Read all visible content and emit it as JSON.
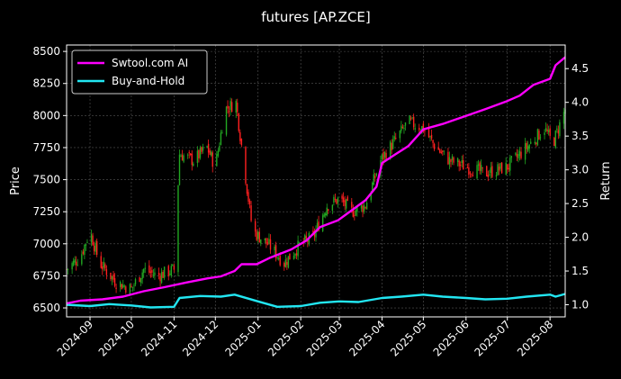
{
  "chart_data": {
    "type": "line",
    "title": "futures [AP.ZCE]",
    "ylabel_left": "Price",
    "ylabel_right": "Return",
    "x_ticks": [
      "2024-09",
      "2024-10",
      "2024-11",
      "2024-12",
      "2025-01",
      "2025-02",
      "2025-03",
      "2025-04",
      "2025-05",
      "2025-06",
      "2025-07",
      "2025-08"
    ],
    "x_range": [
      "2024-08-15",
      "2025-08-12"
    ],
    "y_left_range": [
      6430,
      8550
    ],
    "y_left_ticks": [
      "6500",
      "6750",
      "7000",
      "7250",
      "7500",
      "7750",
      "8000",
      "8250",
      "8500"
    ],
    "y_right_range": [
      0.82,
      4.85
    ],
    "y_right_ticks": [
      "1.0",
      "1.5",
      "2.0",
      "2.5",
      "3.0",
      "3.5",
      "4.0",
      "4.5"
    ],
    "grid": true,
    "legend_position": "top-left",
    "colors": {
      "strategy": "#ff00ff",
      "buyhold": "#22e6f2",
      "up_candle": "#22a822",
      "down_candle": "#ff2020",
      "background": "#000000",
      "grid": "#555555"
    },
    "series": [
      {
        "name": "Swtool.com AI",
        "axis": "right",
        "points": [
          [
            "2024-08-15",
            1.02
          ],
          [
            "2024-08-25",
            1.06
          ],
          [
            "2024-09-10",
            1.08
          ],
          [
            "2024-09-25",
            1.12
          ],
          [
            "2024-10-10",
            1.2
          ],
          [
            "2024-10-25",
            1.26
          ],
          [
            "2024-11-10",
            1.33
          ],
          [
            "2024-11-25",
            1.39
          ],
          [
            "2024-12-05",
            1.42
          ],
          [
            "2024-12-15",
            1.5
          ],
          [
            "2024-12-20",
            1.6
          ],
          [
            "2024-12-31",
            1.6
          ],
          [
            "2025-01-10",
            1.7
          ],
          [
            "2025-01-25",
            1.82
          ],
          [
            "2025-02-05",
            1.95
          ],
          [
            "2025-02-15",
            2.15
          ],
          [
            "2025-02-28",
            2.25
          ],
          [
            "2025-03-10",
            2.4
          ],
          [
            "2025-03-20",
            2.55
          ],
          [
            "2025-03-28",
            2.75
          ],
          [
            "2025-04-01",
            3.1
          ],
          [
            "2025-04-10",
            3.22
          ],
          [
            "2025-04-20",
            3.35
          ],
          [
            "2025-05-01",
            3.6
          ],
          [
            "2025-05-15",
            3.68
          ],
          [
            "2025-06-01",
            3.8
          ],
          [
            "2025-06-15",
            3.9
          ],
          [
            "2025-07-01",
            4.02
          ],
          [
            "2025-07-10",
            4.1
          ],
          [
            "2025-07-20",
            4.26
          ],
          [
            "2025-08-01",
            4.35
          ],
          [
            "2025-08-05",
            4.55
          ],
          [
            "2025-08-12",
            4.67
          ]
        ]
      },
      {
        "name": "Buy-and-Hold",
        "axis": "right",
        "points": [
          [
            "2024-08-15",
            1.0
          ],
          [
            "2024-09-01",
            0.98
          ],
          [
            "2024-09-15",
            1.01
          ],
          [
            "2024-10-01",
            0.99
          ],
          [
            "2024-10-15",
            0.96
          ],
          [
            "2024-11-01",
            0.97
          ],
          [
            "2024-11-05",
            1.1
          ],
          [
            "2024-11-20",
            1.13
          ],
          [
            "2024-12-05",
            1.12
          ],
          [
            "2024-12-15",
            1.15
          ],
          [
            "2025-01-01",
            1.05
          ],
          [
            "2025-01-15",
            0.97
          ],
          [
            "2025-02-01",
            0.98
          ],
          [
            "2025-02-15",
            1.03
          ],
          [
            "2025-03-01",
            1.05
          ],
          [
            "2025-03-15",
            1.04
          ],
          [
            "2025-04-01",
            1.1
          ],
          [
            "2025-04-15",
            1.12
          ],
          [
            "2025-05-01",
            1.15
          ],
          [
            "2025-05-15",
            1.12
          ],
          [
            "2025-06-01",
            1.1
          ],
          [
            "2025-06-15",
            1.08
          ],
          [
            "2025-07-01",
            1.09
          ],
          [
            "2025-07-15",
            1.12
          ],
          [
            "2025-08-01",
            1.15
          ],
          [
            "2025-08-05",
            1.12
          ],
          [
            "2025-08-12",
            1.16
          ]
        ]
      },
      {
        "name": "price",
        "axis": "left",
        "style": "candles",
        "points": [
          [
            "2024-08-15",
            6800
          ],
          [
            "2024-08-25",
            6900
          ],
          [
            "2024-09-01",
            7100
          ],
          [
            "2024-09-08",
            6850
          ],
          [
            "2024-09-20",
            6700
          ],
          [
            "2024-10-01",
            6650
          ],
          [
            "2024-10-10",
            6800
          ],
          [
            "2024-10-20",
            6750
          ],
          [
            "2024-11-01",
            6800
          ],
          [
            "2024-11-05",
            7700
          ],
          [
            "2024-11-15",
            7650
          ],
          [
            "2024-11-25",
            7750
          ],
          [
            "2024-12-01",
            7600
          ],
          [
            "2024-12-08",
            8050
          ],
          [
            "2024-12-16",
            8100
          ],
          [
            "2024-12-28",
            7100
          ],
          [
            "2025-01-08",
            7000
          ],
          [
            "2025-01-20",
            6850
          ],
          [
            "2025-02-01",
            7000
          ],
          [
            "2025-02-10",
            7050
          ],
          [
            "2025-02-20",
            7300
          ],
          [
            "2025-03-01",
            7350
          ],
          [
            "2025-03-10",
            7250
          ],
          [
            "2025-03-20",
            7300
          ],
          [
            "2025-03-31",
            7650
          ],
          [
            "2025-04-10",
            7800
          ],
          [
            "2025-04-20",
            7950
          ],
          [
            "2025-05-01",
            7900
          ],
          [
            "2025-05-10",
            7750
          ],
          [
            "2025-05-20",
            7650
          ],
          [
            "2025-06-01",
            7600
          ],
          [
            "2025-06-15",
            7550
          ],
          [
            "2025-07-01",
            7600
          ],
          [
            "2025-07-15",
            7750
          ],
          [
            "2025-07-28",
            7900
          ],
          [
            "2025-08-03",
            7780
          ],
          [
            "2025-08-12",
            8050
          ]
        ]
      }
    ]
  }
}
